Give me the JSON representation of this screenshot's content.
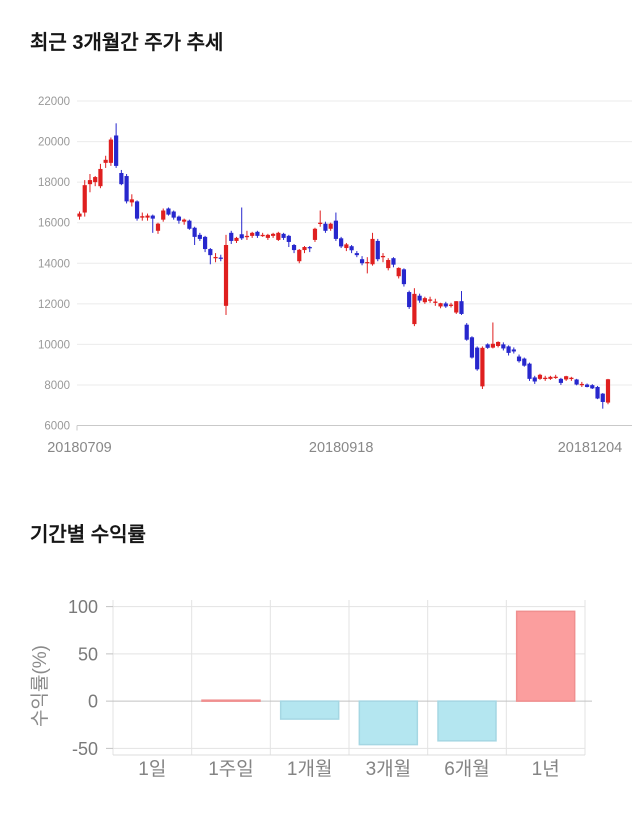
{
  "page": {
    "background": "#ffffff"
  },
  "price_section": {
    "title": "최근 3개월간 주가 추세"
  },
  "returns_section": {
    "title": "기간별 수익률"
  },
  "chart_data": [
    {
      "type": "candlestick",
      "title": "최근 3개월간 주가 추세",
      "up_color": "#df1f1f",
      "down_color": "#2727cd",
      "grid": true,
      "ylim": [
        6000,
        22000
      ],
      "yticks": [
        6000,
        8000,
        10000,
        12000,
        14000,
        16000,
        18000,
        20000,
        22000
      ],
      "xticks": [
        {
          "label": "20180709",
          "index": 0
        },
        {
          "label": "20180918",
          "index": 50
        },
        {
          "label": "20181204",
          "index": 101
        }
      ],
      "candles": [
        [
          16300,
          16550,
          16150,
          16450
        ],
        [
          16500,
          18100,
          16300,
          17850
        ],
        [
          17900,
          18400,
          17500,
          18100
        ],
        [
          18000,
          18300,
          17800,
          18250
        ],
        [
          17800,
          18900,
          17700,
          18650
        ],
        [
          18950,
          19300,
          18700,
          19100
        ],
        [
          18950,
          20200,
          18800,
          20100
        ],
        [
          20300,
          20900,
          18700,
          18800
        ],
        [
          18450,
          18600,
          17850,
          17900
        ],
        [
          18300,
          18400,
          16950,
          17050
        ],
        [
          17000,
          17400,
          16800,
          17150
        ],
        [
          17050,
          17100,
          16100,
          16200
        ],
        [
          16250,
          16500,
          16100,
          16320
        ],
        [
          16250,
          16450,
          16100,
          16350
        ],
        [
          16350,
          16400,
          15500,
          16200
        ],
        [
          15600,
          16000,
          15450,
          15950
        ],
        [
          16150,
          16700,
          16050,
          16600
        ],
        [
          16700,
          16750,
          16350,
          16400
        ],
        [
          16550,
          16600,
          16150,
          16250
        ],
        [
          16300,
          16350,
          15950,
          16100
        ],
        [
          16050,
          16200,
          15900,
          16150
        ],
        [
          16100,
          16150,
          15650,
          15700
        ],
        [
          15750,
          15800,
          14900,
          15300
        ],
        [
          15400,
          15500,
          15100,
          15200
        ],
        [
          15300,
          15350,
          14550,
          14700
        ],
        [
          14700,
          14750,
          13950,
          14400
        ],
        [
          14300,
          14500,
          14050,
          14310
        ],
        [
          14280,
          14420,
          14100,
          14250
        ],
        [
          11900,
          15400,
          11450,
          14900
        ],
        [
          15500,
          15600,
          14950,
          15100
        ],
        [
          15100,
          15300,
          15000,
          15250
        ],
        [
          15430,
          16750,
          15150,
          15230
        ],
        [
          15340,
          15600,
          15150,
          15350
        ],
        [
          15350,
          15550,
          15250,
          15500
        ],
        [
          15550,
          15600,
          15250,
          15350
        ],
        [
          15390,
          15500,
          15300,
          15400
        ],
        [
          15250,
          15450,
          15150,
          15400
        ],
        [
          15350,
          15500,
          15250,
          15450
        ],
        [
          15150,
          15550,
          15100,
          15500
        ],
        [
          15450,
          15500,
          15150,
          15250
        ],
        [
          15350,
          15400,
          14800,
          15050
        ],
        [
          14900,
          14950,
          14500,
          14650
        ],
        [
          14100,
          14700,
          14000,
          14660
        ],
        [
          14650,
          14850,
          14500,
          14800
        ],
        [
          14800,
          14850,
          14550,
          14750
        ],
        [
          15150,
          15750,
          15050,
          15700
        ],
        [
          15950,
          16600,
          15800,
          16000
        ],
        [
          15950,
          16050,
          15500,
          15600
        ],
        [
          15700,
          16000,
          15600,
          15950
        ],
        [
          16100,
          16500,
          15100,
          15200
        ],
        [
          15230,
          15300,
          14750,
          14830
        ],
        [
          14750,
          15000,
          14600,
          14930
        ],
        [
          14840,
          14900,
          14500,
          14640
        ],
        [
          14500,
          14600,
          14300,
          14400
        ],
        [
          14200,
          14350,
          13900,
          14000
        ],
        [
          14050,
          14300,
          13500,
          14060
        ],
        [
          13950,
          15500,
          13880,
          15200
        ],
        [
          15100,
          15200,
          14100,
          14200
        ],
        [
          14300,
          14500,
          14050,
          14360
        ],
        [
          13760,
          14250,
          13650,
          14160
        ],
        [
          14250,
          14300,
          13800,
          13930
        ],
        [
          13360,
          13800,
          13250,
          13770
        ],
        [
          13700,
          13750,
          12850,
          12970
        ],
        [
          12580,
          12650,
          11750,
          11840
        ],
        [
          11000,
          12770,
          10900,
          12490
        ],
        [
          12400,
          12500,
          12050,
          12160
        ],
        [
          12080,
          12350,
          12000,
          12280
        ],
        [
          12200,
          12350,
          12050,
          12215
        ],
        [
          12100,
          12250,
          11900,
          12110
        ],
        [
          11870,
          12050,
          11780,
          12030
        ],
        [
          12020,
          12100,
          11800,
          11870
        ],
        [
          11950,
          12050,
          11820,
          11960
        ],
        [
          11570,
          12130,
          11500,
          12130
        ],
        [
          12130,
          12630,
          11450,
          11500
        ],
        [
          10970,
          11050,
          10180,
          10230
        ],
        [
          10350,
          10400,
          9300,
          9350
        ],
        [
          9840,
          9900,
          8700,
          8770
        ],
        [
          7930,
          9900,
          7800,
          9830
        ],
        [
          10000,
          10050,
          9780,
          9830
        ],
        [
          9840,
          11080,
          9800,
          10030
        ],
        [
          9920,
          10150,
          9850,
          10120
        ],
        [
          10000,
          10100,
          9700,
          9800
        ],
        [
          9900,
          9950,
          9450,
          9580
        ],
        [
          9750,
          9850,
          9550,
          9650
        ],
        [
          9400,
          9500,
          9100,
          9170
        ],
        [
          9300,
          9350,
          8900,
          8950
        ],
        [
          9050,
          9100,
          8200,
          8300
        ],
        [
          8370,
          8450,
          8050,
          8170
        ],
        [
          8300,
          8550,
          8250,
          8500
        ],
        [
          8350,
          8450,
          8200,
          8355
        ],
        [
          8300,
          8450,
          8250,
          8400
        ],
        [
          8400,
          8500,
          8300,
          8405
        ],
        [
          8300,
          8350,
          8000,
          8100
        ],
        [
          8270,
          8450,
          8200,
          8430
        ],
        [
          8350,
          8400,
          8200,
          8355
        ],
        [
          8270,
          8300,
          7980,
          8020
        ],
        [
          8000,
          8150,
          7900,
          8050
        ],
        [
          8020,
          8070,
          7880,
          7900
        ],
        [
          7990,
          8040,
          7800,
          7830
        ],
        [
          7900,
          7950,
          7300,
          7330
        ],
        [
          7570,
          7600,
          6830,
          7160
        ],
        [
          7130,
          8300,
          7050,
          8280
        ]
      ]
    },
    {
      "type": "bar",
      "title": "기간별 수익률",
      "ylabel": "수익률(%)",
      "categories": [
        "1일",
        "1주일",
        "1개월",
        "3개월",
        "6개월",
        "1년"
      ],
      "values": [
        0,
        1,
        -19,
        -46,
        -42,
        95
      ],
      "yticks": [
        100,
        50,
        0,
        -50
      ],
      "ylim": [
        -57,
        107
      ],
      "grid": true,
      "legend": false,
      "positive_color": "#fb9e9e",
      "positive_stroke": "#f08f8f",
      "negative_color": "#b4e6f0",
      "negative_stroke": "#a5d7e3"
    }
  ]
}
